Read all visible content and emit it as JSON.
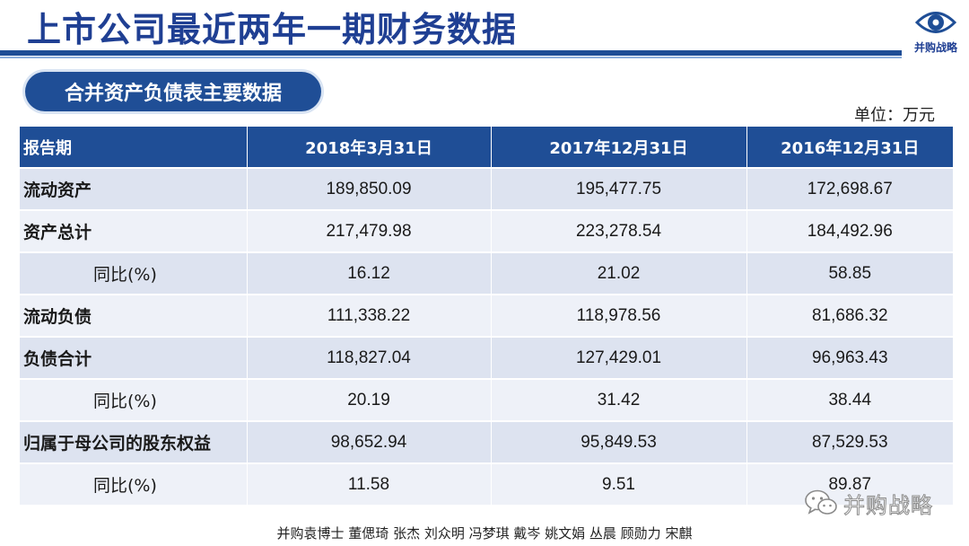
{
  "slide": {
    "title": "上市公司最近两年一期财务数据",
    "section_title": "合并资产负债表主要数据",
    "unit": "单位：万元",
    "logo_text": "并购战略",
    "watermark_text": "并购战略",
    "credits": "并购袁博士 董偲琦 张杰 刘众明 冯梦琪 戴岑 姚文娟  丛晨 顾勋力 宋麒",
    "colors": {
      "primary": "#1f4e96",
      "title_text": "#1f3f93",
      "row_odd": "#dde3f0",
      "row_even": "#eef1f8"
    }
  },
  "table": {
    "headers": [
      "报告期",
      "2018年3月31日",
      "2017年12月31日",
      "2016年12月31日"
    ],
    "rows": [
      {
        "label": "流动资产",
        "values": [
          "189,850.09",
          "195,477.75",
          "172,698.67"
        ]
      },
      {
        "label": "资产总计",
        "values": [
          "217,479.98",
          "223,278.54",
          "184,492.96"
        ]
      },
      {
        "label": "同比(%)",
        "values": [
          "16.12",
          "21.02",
          "58.85"
        ]
      },
      {
        "label": "流动负债",
        "values": [
          "111,338.22",
          "118,978.56",
          "81,686.32"
        ]
      },
      {
        "label": "负债合计",
        "values": [
          "118,827.04",
          "127,429.01",
          "96,963.43"
        ]
      },
      {
        "label": "同比(%)",
        "values": [
          "20.19",
          "31.42",
          "38.44"
        ]
      },
      {
        "label": "归属于母公司的股东权益",
        "values": [
          "98,652.94",
          "95,849.53",
          "87,529.53"
        ]
      },
      {
        "label": "同比(%)",
        "values": [
          "11.58",
          "9.51",
          "89.87"
        ]
      }
    ]
  }
}
